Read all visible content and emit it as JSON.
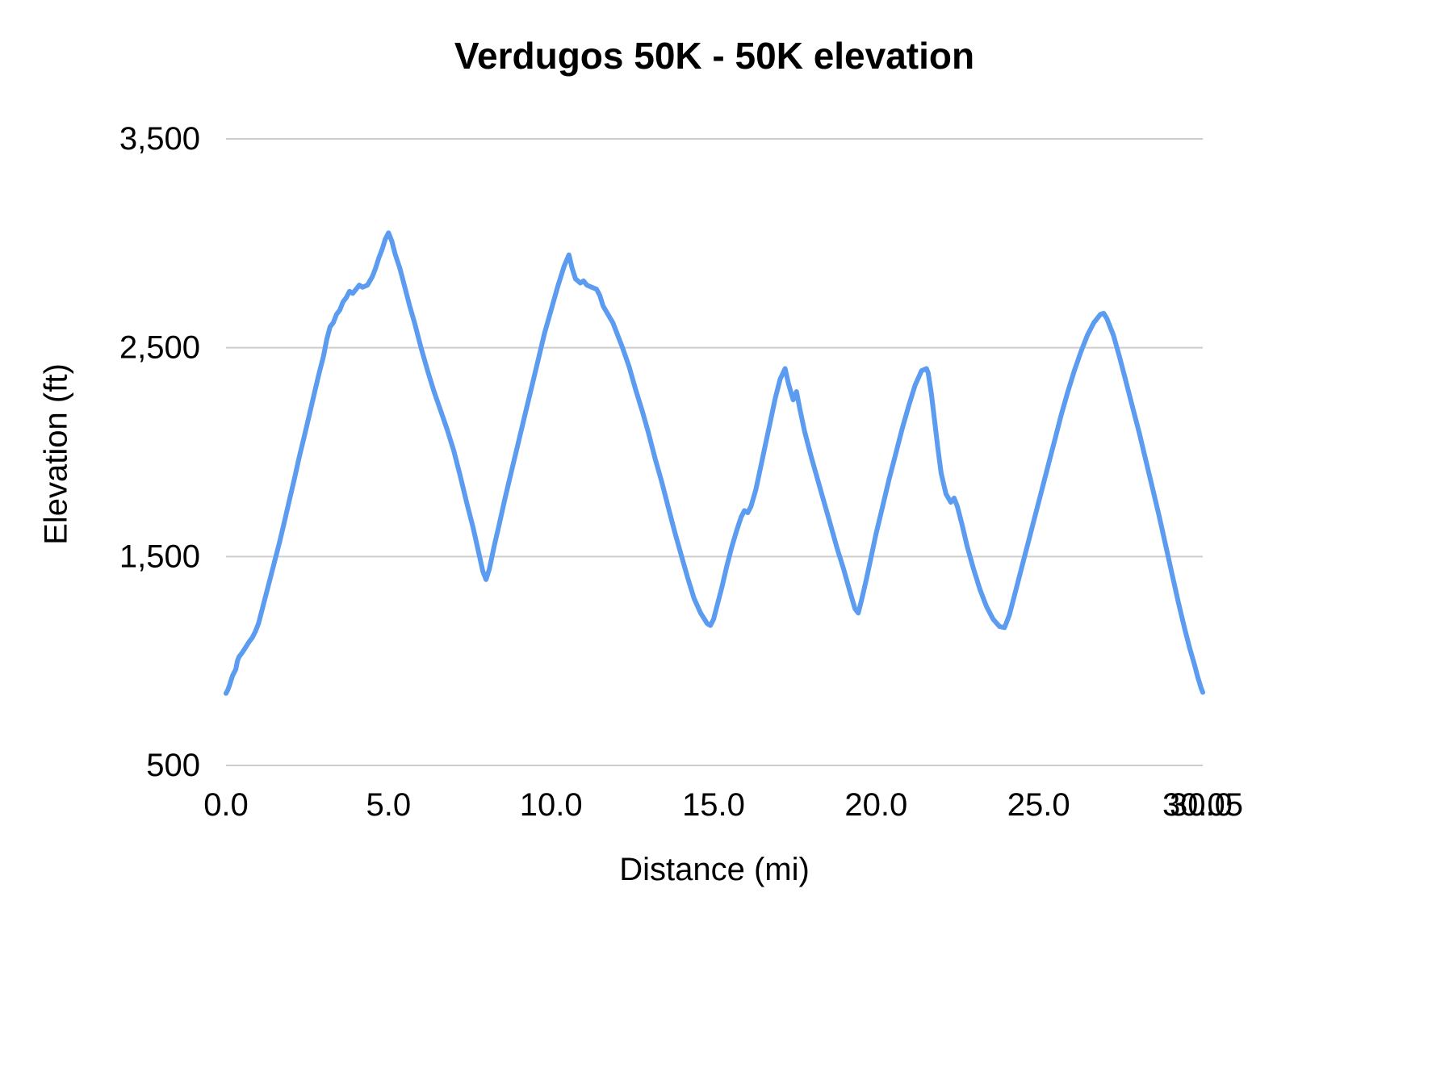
{
  "chart_data": {
    "type": "line",
    "title": "Verdugos 50K - 50K elevation",
    "xlabel": "Distance (mi)",
    "ylabel": "Elevation (ft)",
    "xlim": [
      0,
      30.05
    ],
    "ylim": [
      500,
      3500
    ],
    "grid": "horizontal",
    "legend": "none",
    "line_color": "#5b9bf0",
    "grid_color": "#cccccc",
    "text_color": "#000000",
    "x_ticks": [
      {
        "value": 0.0,
        "label": "0.0"
      },
      {
        "value": 5.0,
        "label": "5.0"
      },
      {
        "value": 10.0,
        "label": "10.0"
      },
      {
        "value": 15.0,
        "label": "15.0"
      },
      {
        "value": 20.0,
        "label": "20.0"
      },
      {
        "value": 25.0,
        "label": "25.0"
      },
      {
        "value": 30.0,
        "label": "30.0"
      },
      {
        "value": 30.05,
        "label": "30.05"
      }
    ],
    "y_ticks": [
      {
        "value": 500,
        "label": "500"
      },
      {
        "value": 1500,
        "label": "1,500"
      },
      {
        "value": 2500,
        "label": "2,500"
      },
      {
        "value": 3500,
        "label": "3,500"
      }
    ],
    "series": [
      {
        "name": "50K elevation",
        "points": [
          [
            0.0,
            845
          ],
          [
            0.05,
            860
          ],
          [
            0.1,
            880
          ],
          [
            0.15,
            905
          ],
          [
            0.2,
            930
          ],
          [
            0.3,
            960
          ],
          [
            0.35,
            1000
          ],
          [
            0.4,
            1020
          ],
          [
            0.5,
            1040
          ],
          [
            0.6,
            1065
          ],
          [
            0.7,
            1090
          ],
          [
            0.8,
            1110
          ],
          [
            0.9,
            1140
          ],
          [
            1.0,
            1180
          ],
          [
            1.1,
            1240
          ],
          [
            1.2,
            1300
          ],
          [
            1.35,
            1390
          ],
          [
            1.5,
            1480
          ],
          [
            1.65,
            1570
          ],
          [
            1.8,
            1670
          ],
          [
            1.95,
            1770
          ],
          [
            2.1,
            1870
          ],
          [
            2.25,
            1975
          ],
          [
            2.4,
            2070
          ],
          [
            2.55,
            2170
          ],
          [
            2.7,
            2270
          ],
          [
            2.85,
            2370
          ],
          [
            3.0,
            2460
          ],
          [
            3.1,
            2540
          ],
          [
            3.2,
            2600
          ],
          [
            3.3,
            2620
          ],
          [
            3.4,
            2660
          ],
          [
            3.5,
            2680
          ],
          [
            3.6,
            2720
          ],
          [
            3.7,
            2740
          ],
          [
            3.8,
            2770
          ],
          [
            3.9,
            2760
          ],
          [
            4.0,
            2780
          ],
          [
            4.1,
            2800
          ],
          [
            4.2,
            2790
          ],
          [
            4.35,
            2800
          ],
          [
            4.5,
            2840
          ],
          [
            4.6,
            2880
          ],
          [
            4.7,
            2930
          ],
          [
            4.8,
            2970
          ],
          [
            4.9,
            3020
          ],
          [
            5.0,
            3050
          ],
          [
            5.1,
            3010
          ],
          [
            5.2,
            2950
          ],
          [
            5.35,
            2880
          ],
          [
            5.5,
            2790
          ],
          [
            5.65,
            2700
          ],
          [
            5.8,
            2620
          ],
          [
            6.0,
            2500
          ],
          [
            6.2,
            2390
          ],
          [
            6.4,
            2290
          ],
          [
            6.6,
            2200
          ],
          [
            6.8,
            2110
          ],
          [
            7.0,
            2010
          ],
          [
            7.2,
            1890
          ],
          [
            7.4,
            1760
          ],
          [
            7.6,
            1640
          ],
          [
            7.8,
            1500
          ],
          [
            7.9,
            1430
          ],
          [
            8.0,
            1390
          ],
          [
            8.1,
            1440
          ],
          [
            8.25,
            1550
          ],
          [
            8.4,
            1650
          ],
          [
            8.6,
            1790
          ],
          [
            8.8,
            1920
          ],
          [
            9.0,
            2050
          ],
          [
            9.2,
            2180
          ],
          [
            9.4,
            2310
          ],
          [
            9.6,
            2440
          ],
          [
            9.8,
            2570
          ],
          [
            10.0,
            2680
          ],
          [
            10.2,
            2790
          ],
          [
            10.4,
            2890
          ],
          [
            10.55,
            2945
          ],
          [
            10.65,
            2880
          ],
          [
            10.75,
            2830
          ],
          [
            10.9,
            2810
          ],
          [
            11.0,
            2820
          ],
          [
            11.1,
            2800
          ],
          [
            11.25,
            2790
          ],
          [
            11.4,
            2780
          ],
          [
            11.5,
            2750
          ],
          [
            11.6,
            2700
          ],
          [
            11.75,
            2660
          ],
          [
            11.9,
            2620
          ],
          [
            12.0,
            2580
          ],
          [
            12.2,
            2500
          ],
          [
            12.4,
            2410
          ],
          [
            12.6,
            2300
          ],
          [
            12.8,
            2200
          ],
          [
            13.0,
            2090
          ],
          [
            13.2,
            1970
          ],
          [
            13.4,
            1860
          ],
          [
            13.6,
            1740
          ],
          [
            13.8,
            1620
          ],
          [
            14.0,
            1510
          ],
          [
            14.2,
            1400
          ],
          [
            14.4,
            1300
          ],
          [
            14.6,
            1230
          ],
          [
            14.8,
            1180
          ],
          [
            14.9,
            1170
          ],
          [
            15.0,
            1200
          ],
          [
            15.1,
            1260
          ],
          [
            15.25,
            1350
          ],
          [
            15.4,
            1450
          ],
          [
            15.55,
            1540
          ],
          [
            15.7,
            1620
          ],
          [
            15.85,
            1690
          ],
          [
            15.95,
            1720
          ],
          [
            16.05,
            1710
          ],
          [
            16.15,
            1740
          ],
          [
            16.3,
            1820
          ],
          [
            16.45,
            1930
          ],
          [
            16.6,
            2040
          ],
          [
            16.75,
            2150
          ],
          [
            16.9,
            2260
          ],
          [
            17.05,
            2350
          ],
          [
            17.2,
            2400
          ],
          [
            17.3,
            2330
          ],
          [
            17.45,
            2250
          ],
          [
            17.55,
            2290
          ],
          [
            17.65,
            2210
          ],
          [
            17.8,
            2100
          ],
          [
            18.0,
            1980
          ],
          [
            18.2,
            1870
          ],
          [
            18.4,
            1760
          ],
          [
            18.6,
            1650
          ],
          [
            18.8,
            1540
          ],
          [
            19.0,
            1440
          ],
          [
            19.2,
            1330
          ],
          [
            19.35,
            1250
          ],
          [
            19.45,
            1230
          ],
          [
            19.55,
            1290
          ],
          [
            19.7,
            1390
          ],
          [
            19.85,
            1500
          ],
          [
            20.0,
            1610
          ],
          [
            20.2,
            1740
          ],
          [
            20.4,
            1870
          ],
          [
            20.6,
            1990
          ],
          [
            20.8,
            2110
          ],
          [
            21.0,
            2220
          ],
          [
            21.2,
            2320
          ],
          [
            21.4,
            2390
          ],
          [
            21.55,
            2400
          ],
          [
            21.6,
            2380
          ],
          [
            21.7,
            2280
          ],
          [
            21.8,
            2150
          ],
          [
            21.9,
            2020
          ],
          [
            22.0,
            1900
          ],
          [
            22.15,
            1800
          ],
          [
            22.3,
            1760
          ],
          [
            22.4,
            1780
          ],
          [
            22.5,
            1740
          ],
          [
            22.65,
            1650
          ],
          [
            22.8,
            1550
          ],
          [
            23.0,
            1440
          ],
          [
            23.2,
            1340
          ],
          [
            23.4,
            1260
          ],
          [
            23.6,
            1200
          ],
          [
            23.8,
            1165
          ],
          [
            23.95,
            1160
          ],
          [
            24.1,
            1220
          ],
          [
            24.3,
            1340
          ],
          [
            24.5,
            1460
          ],
          [
            24.7,
            1580
          ],
          [
            24.9,
            1700
          ],
          [
            25.1,
            1820
          ],
          [
            25.3,
            1940
          ],
          [
            25.5,
            2060
          ],
          [
            25.7,
            2180
          ],
          [
            25.9,
            2290
          ],
          [
            26.1,
            2390
          ],
          [
            26.3,
            2480
          ],
          [
            26.5,
            2560
          ],
          [
            26.7,
            2620
          ],
          [
            26.9,
            2660
          ],
          [
            27.0,
            2665
          ],
          [
            27.1,
            2640
          ],
          [
            27.3,
            2560
          ],
          [
            27.5,
            2450
          ],
          [
            27.7,
            2330
          ],
          [
            27.9,
            2210
          ],
          [
            28.1,
            2090
          ],
          [
            28.3,
            1960
          ],
          [
            28.5,
            1830
          ],
          [
            28.7,
            1700
          ],
          [
            28.9,
            1560
          ],
          [
            29.1,
            1420
          ],
          [
            29.3,
            1280
          ],
          [
            29.5,
            1150
          ],
          [
            29.65,
            1060
          ],
          [
            29.8,
            980
          ],
          [
            29.9,
            920
          ],
          [
            30.0,
            870
          ],
          [
            30.05,
            850
          ]
        ]
      }
    ]
  }
}
